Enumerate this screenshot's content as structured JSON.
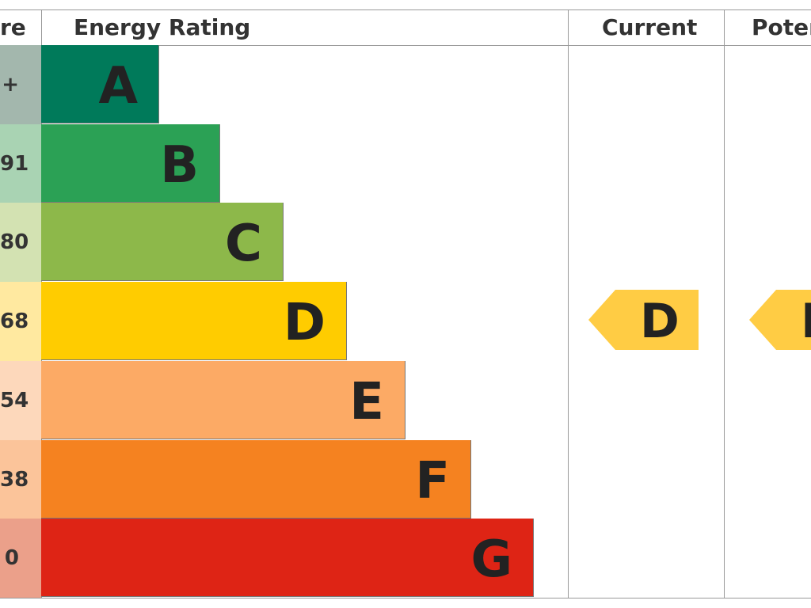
{
  "header": {
    "score": "re",
    "rating": "Energy Rating",
    "current": "Current",
    "potential": "Poter"
  },
  "bands": [
    {
      "score": "+",
      "letter": "A"
    },
    {
      "score": "91",
      "letter": "B"
    },
    {
      "score": "80",
      "letter": "C"
    },
    {
      "score": "68",
      "letter": "D"
    },
    {
      "score": "54",
      "letter": "E"
    },
    {
      "score": "38",
      "letter": "F"
    },
    {
      "score": "0",
      "letter": "G"
    }
  ],
  "current": "D",
  "potential": "D"
}
